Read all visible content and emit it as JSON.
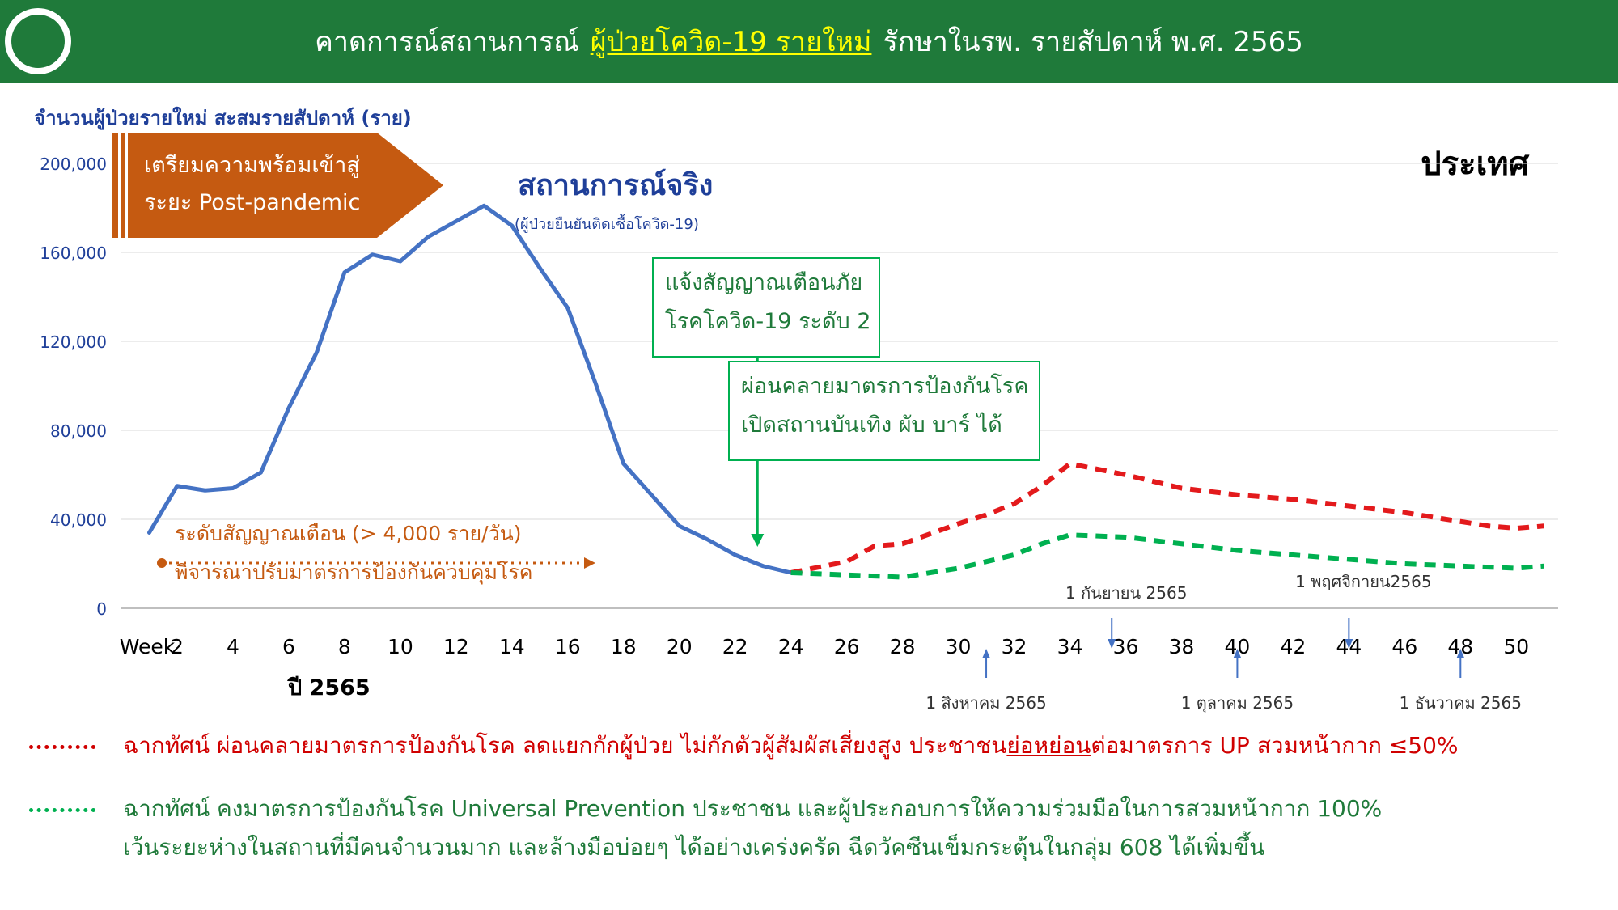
{
  "header": {
    "title_part1": "คาดการณ์สถานการณ์",
    "title_highlight": "ผู้ป่วยโควิด-19 รายใหม่",
    "title_part2": "รักษาในรพ. รายสัปดาห์ พ.ศ. 2565"
  },
  "y_title": "จำนวนผู้ป่วยรายใหม่ สะสมรายสัปดาห์ (ราย)",
  "region_label": "ประเทศ",
  "arrow_banner": {
    "line1": "เตรียมความพร้อมเข้าสู่",
    "line2": "ระยะ Post-pandemic"
  },
  "actual_label": {
    "title": "สถานการณ์จริง",
    "subtitle": "(ผู้ป่วยยืนยันติดเชื้อโควิด-19)"
  },
  "alert_box": {
    "line1": "แจ้งสัญญาณเตือนภัย",
    "line2": "โรคโควิด-19 ระดับ 2"
  },
  "relax_box": {
    "line1": "ผ่อนคลายมาตรการป้องกันโรค",
    "line2": "เปิดสถานบันเทิง ผับ บาร์ ได้"
  },
  "threshold": {
    "line1": "ระดับสัญญาณเตือน (> 4,000 ราย/วัน)",
    "line2": "พิจารณาปรับมาตรการป้องกันควบคุมโรค"
  },
  "year_label": "ปี 2565",
  "date_markers": {
    "aug": "1 สิงหาคม 2565",
    "sep": "1 กันยายน 2565",
    "oct": "1 ตุลาคม 2565",
    "nov": "1 พฤศจิกายน2565",
    "dec": "1 ธันวาคม 2565"
  },
  "legend": {
    "red_text_a": "ฉากทัศน์ ผ่อนคลายมาตรการป้องกันโรค ลดแยกกักผู้ป่วย ไม่กักตัวผู้สัมผัสเสี่ยงสูง ประชาชน",
    "red_text_u": "ย่อหย่อน",
    "red_text_b": "ต่อมาตรการ UP สวมหน้ากาก ≤50%",
    "green_line1": "ฉากทัศน์ คงมาตรการป้องกันโรค Universal Prevention ประชาชน และผู้ประกอบการให้ความร่วมมือในการสวมหน้ากาก 100%",
    "green_line2": "เว้นระยะห่างในสถานที่มีคนจำนวนมาก และล้างมือบ่อยๆ ได้อย่างเคร่งครัด ฉีดวัคซีนเข็มกระตุ้นในกลุ่ม 608 ได้เพิ่มขึ้น"
  },
  "colors": {
    "header_bg": "#1f7a3a",
    "actual": "#4472c4",
    "red_scenario": "#e31a1c",
    "green_scenario": "#00b050",
    "threshold": "#c55a11",
    "axis_text": "#1f3f99"
  },
  "chart_data": {
    "type": "line",
    "x_first_label": "Week",
    "xticks": [
      2,
      4,
      6,
      8,
      10,
      12,
      14,
      16,
      18,
      20,
      22,
      24,
      26,
      28,
      30,
      32,
      34,
      36,
      38,
      40,
      42,
      44,
      46,
      48,
      50
    ],
    "yticks": [
      0,
      40000,
      80000,
      120000,
      160000,
      200000
    ],
    "ytick_labels": [
      "0",
      "40,000",
      "80,000",
      "120,000",
      "160,000",
      "200,000"
    ],
    "ylim": [
      0,
      200000
    ],
    "xlim": [
      0,
      51.5
    ],
    "grid": true,
    "series": [
      {
        "style": "solid",
        "color": "#4472c4",
        "x": [
          1,
          2,
          3,
          4,
          5,
          6,
          7,
          8,
          9,
          10,
          11,
          12,
          13,
          14,
          15,
          16,
          17,
          18,
          19,
          20,
          21,
          22,
          23,
          24
        ],
        "y": [
          34000,
          55000,
          53000,
          54000,
          61000,
          90000,
          115000,
          151000,
          159000,
          156000,
          167000,
          174000,
          181000,
          172000,
          153000,
          135000,
          101000,
          65000,
          51000,
          37000,
          31000,
          24000,
          19000,
          16000
        ]
      },
      {
        "style": "dashed",
        "color": "#e31a1c",
        "x": [
          24,
          26,
          27,
          28,
          30,
          31,
          32,
          33,
          34,
          36,
          38,
          40,
          42,
          44,
          46,
          48,
          49,
          50,
          51
        ],
        "y": [
          16000,
          21000,
          28000,
          29000,
          38000,
          42000,
          47000,
          55000,
          65000,
          60000,
          54000,
          51000,
          49000,
          46000,
          43000,
          39000,
          37000,
          36000,
          37000
        ]
      },
      {
        "style": "dashed",
        "color": "#00b050",
        "x": [
          24,
          26,
          28,
          30,
          32,
          33,
          34,
          36,
          38,
          40,
          42,
          44,
          46,
          48,
          50,
          51
        ],
        "y": [
          16000,
          15000,
          14000,
          18000,
          24000,
          29000,
          33000,
          32000,
          29000,
          26000,
          24000,
          22000,
          20000,
          19000,
          18000,
          19000
        ]
      }
    ],
    "threshold_y": 24000,
    "alert_week": 22.8,
    "marker_weeks": {
      "aug": 31,
      "sep": 35.5,
      "oct": 40,
      "nov": 44,
      "dec": 48
    }
  }
}
